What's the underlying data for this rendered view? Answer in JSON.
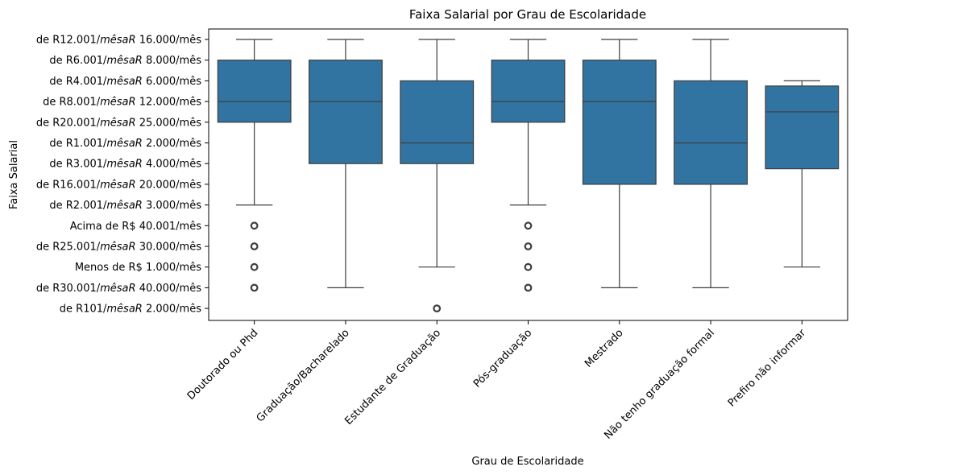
{
  "chart_data": {
    "type": "boxplot",
    "title": "Faixa Salarial por Grau de Escolaridade",
    "xlabel": "Grau de Escolaridade",
    "ylabel": "Faixa Salarial",
    "grid": false,
    "box_color": "#3274a1",
    "line_color": "#3d3d3d",
    "y_categories": [
      {
        "pre": "de R12.001/",
        "it": "mêsaR",
        "post": " 16.000/mês"
      },
      {
        "pre": "de R6.001/",
        "it": "mêsaR",
        "post": " 8.000/mês"
      },
      {
        "pre": "de R4.001/",
        "it": "mêsaR",
        "post": " 6.000/mês"
      },
      {
        "pre": "de R8.001/",
        "it": "mêsaR",
        "post": " 12.000/mês"
      },
      {
        "pre": "de R20.001/",
        "it": "mêsaR",
        "post": " 25.000/mês"
      },
      {
        "pre": "de R1.001/",
        "it": "mêsaR",
        "post": " 2.000/mês"
      },
      {
        "pre": "de R3.001/",
        "it": "mêsaR",
        "post": " 4.000/mês"
      },
      {
        "pre": "de R16.001/",
        "it": "mêsaR",
        "post": " 20.000/mês"
      },
      {
        "pre": "de R2.001/",
        "it": "mêsaR",
        "post": " 3.000/mês"
      },
      {
        "pre": "Acima de R$ 40.001/mês",
        "it": "",
        "post": ""
      },
      {
        "pre": "de R25.001/",
        "it": "mêsaR",
        "post": " 30.000/mês"
      },
      {
        "pre": "Menos de R$ 1.000/mês",
        "it": "",
        "post": ""
      },
      {
        "pre": "de R30.001/",
        "it": "mêsaR",
        "post": " 40.000/mês"
      },
      {
        "pre": "de R101/",
        "it": "mêsaR",
        "post": " 2.000/mês"
      }
    ],
    "categories": [
      "Doutorado ou Phd",
      "Graduação/Bacharelado",
      "Estudante de Graduação",
      "Pós-graduação",
      "Mestrado",
      "Não tenho graduação formal",
      "Prefiro não informar"
    ],
    "boxes": [
      {
        "whisker_low": 0,
        "q1": 1,
        "median": 3,
        "q3": 4,
        "whisker_high": 8,
        "outliers": [
          9,
          10,
          11,
          12
        ]
      },
      {
        "whisker_low": 0,
        "q1": 1,
        "median": 3,
        "q3": 6,
        "whisker_high": 12,
        "outliers": []
      },
      {
        "whisker_low": 0,
        "q1": 2,
        "median": 5,
        "q3": 6,
        "whisker_high": 11,
        "outliers": [
          13
        ]
      },
      {
        "whisker_low": 0,
        "q1": 1,
        "median": 3,
        "q3": 4,
        "whisker_high": 8,
        "outliers": [
          9,
          10,
          11,
          12
        ]
      },
      {
        "whisker_low": 0,
        "q1": 1,
        "median": 3,
        "q3": 7,
        "whisker_high": 12,
        "outliers": []
      },
      {
        "whisker_low": 0,
        "q1": 2,
        "median": 5,
        "q3": 7,
        "whisker_high": 12,
        "outliers": []
      },
      {
        "whisker_low": 2,
        "q1": 2.25,
        "median": 3.5,
        "q3": 6.25,
        "whisker_high": 11,
        "outliers": []
      }
    ]
  }
}
